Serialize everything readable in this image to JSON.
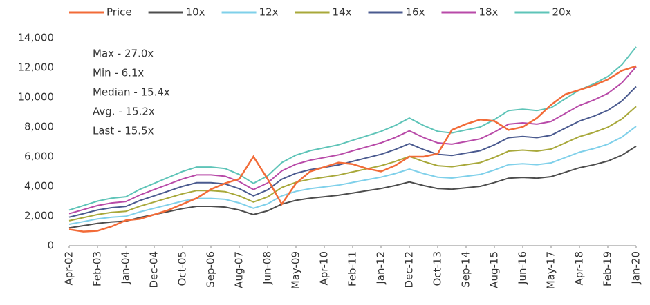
{
  "chart_data": {
    "type": "line",
    "categories": [
      "Apr-02",
      null,
      "Feb-03",
      null,
      "Jan-04",
      null,
      "Dec-04",
      null,
      "Oct-05",
      null,
      "Sep-06",
      null,
      "Aug-07",
      null,
      "Jun-08",
      null,
      "May-09",
      null,
      "Apr-10",
      null,
      "Feb-11",
      null,
      "Jan-12",
      null,
      "Dec-12",
      null,
      "Oct-13",
      null,
      "Sep-14",
      null,
      "Aug-15",
      null,
      "Jun-16",
      null,
      "May-17",
      null,
      "Apr-18",
      null,
      "Feb-19",
      null,
      "Jan-20"
    ],
    "series": [
      {
        "name": "Price",
        "color": "#f26b38",
        "values": [
          1100,
          950,
          1000,
          1300,
          1700,
          1800,
          2100,
          2400,
          2800,
          3200,
          3800,
          4200,
          4500,
          6000,
          4500,
          2800,
          4200,
          5000,
          5300,
          5600,
          5500,
          5200,
          5000,
          5400,
          6000,
          6000,
          6200,
          7800,
          8200,
          8500,
          8400,
          7800,
          8000,
          8600,
          9500,
          10200,
          10500,
          10800,
          11200,
          11800,
          12100
        ]
      },
      {
        "name": "10x",
        "color": "#4d4d4d",
        "values": [
          1200,
          1350,
          1500,
          1600,
          1650,
          1900,
          2100,
          2300,
          2500,
          2650,
          2650,
          2600,
          2400,
          2100,
          2350,
          2800,
          3050,
          3200,
          3300,
          3400,
          3550,
          3700,
          3850,
          4050,
          4300,
          4050,
          3850,
          3800,
          3900,
          4000,
          4250,
          4550,
          4600,
          4550,
          4650,
          4950,
          5250,
          5450,
          5700,
          6100,
          6700
        ]
      },
      {
        "name": "12x",
        "color": "#7fd0ea",
        "values": [
          1440,
          1620,
          1800,
          1920,
          1980,
          2280,
          2520,
          2760,
          3000,
          3180,
          3180,
          3120,
          2880,
          2520,
          2820,
          3360,
          3660,
          3840,
          3960,
          4080,
          4260,
          4440,
          4620,
          4860,
          5160,
          4860,
          4620,
          4560,
          4680,
          4800,
          5100,
          5460,
          5520,
          5460,
          5580,
          5940,
          6300,
          6540,
          6840,
          7320,
          8040
        ]
      },
      {
        "name": "14x",
        "color": "#a8a83a",
        "values": [
          1680,
          1890,
          2100,
          2240,
          2310,
          2660,
          2940,
          3220,
          3500,
          3710,
          3710,
          3640,
          3360,
          2940,
          3290,
          3920,
          4270,
          4480,
          4620,
          4760,
          4970,
          5180,
          5390,
          5670,
          6020,
          5670,
          5390,
          5320,
          5460,
          5600,
          5950,
          6370,
          6440,
          6370,
          6510,
          6930,
          7350,
          7630,
          7980,
          8540,
          9380
        ]
      },
      {
        "name": "16x",
        "color": "#4a5a8f",
        "values": [
          1920,
          2160,
          2400,
          2560,
          2640,
          3040,
          3360,
          3680,
          4000,
          4240,
          4240,
          4160,
          3840,
          3360,
          3760,
          4480,
          4880,
          5120,
          5280,
          5440,
          5680,
          5920,
          6160,
          6480,
          6880,
          6480,
          6160,
          6080,
          6240,
          6400,
          6800,
          7280,
          7360,
          7280,
          7440,
          7920,
          8400,
          8720,
          9120,
          9760,
          10720
        ]
      },
      {
        "name": "18x",
        "color": "#b84aa8",
        "values": [
          2160,
          2430,
          2700,
          2880,
          2970,
          3420,
          3780,
          4140,
          4500,
          4770,
          4770,
          4680,
          4320,
          3780,
          4230,
          5040,
          5490,
          5760,
          5940,
          6120,
          6390,
          6660,
          6930,
          7290,
          7740,
          7290,
          6930,
          6840,
          7020,
          7200,
          7650,
          8190,
          8280,
          8190,
          8370,
          8910,
          9450,
          9810,
          10260,
          10980,
          12060
        ]
      },
      {
        "name": "20x",
        "color": "#5ec4b8",
        "values": [
          2400,
          2700,
          3000,
          3200,
          3300,
          3800,
          4200,
          4600,
          5000,
          5300,
          5300,
          5200,
          4800,
          4200,
          4700,
          5600,
          6100,
          6400,
          6600,
          6800,
          7100,
          7400,
          7700,
          8100,
          8600,
          8100,
          7700,
          7600,
          7800,
          8000,
          8500,
          9100,
          9200,
          9100,
          9300,
          9900,
          10500,
          10900,
          11400,
          12200,
          13400
        ]
      }
    ],
    "ylim": [
      0,
      14000
    ],
    "yticks": [
      0,
      {
        "value": 2000,
        "label": "2,000"
      },
      {
        "value": 4000,
        "label": "4,000"
      },
      {
        "value": 6000,
        "label": "6,000"
      },
      {
        "value": 8000,
        "label": "8,000"
      },
      {
        "value": 10000,
        "label": "10,000"
      },
      {
        "value": 12000,
        "label": "12,000"
      },
      {
        "value": 14000,
        "label": "14,000"
      }
    ],
    "annotations": [
      "Max  - 27.0x",
      "Min - 6.1x",
      "Median - 15.4x",
      "Avg. - 15.2x",
      "Last  - 15.5x"
    ],
    "legend": "top"
  }
}
